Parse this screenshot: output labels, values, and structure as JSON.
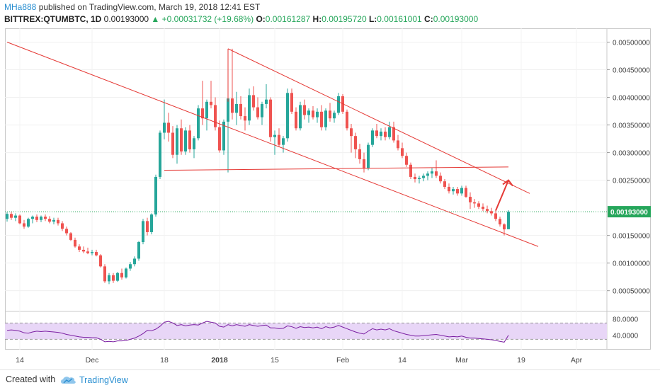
{
  "header": {
    "author": "MHa888",
    "published": "published on TradingView.com, March 19, 2018 12:41 EST",
    "symbol": "BITTREX:QTUMBTC, 1D",
    "last": "0.00193000",
    "change_arrow": "▲",
    "change": "+0.00031732 (+19.68%)",
    "o_label": "O:",
    "o_value": "0.00161287",
    "h_label": "H:",
    "h_value": "0.00195720",
    "l_label": "L:",
    "l_value": "0.00161001",
    "c_label": "C:",
    "c_value": "0.00193000"
  },
  "footer": {
    "created_with": "Created with",
    "brand": "TradingView",
    "brand_icon": "tradingview-cloud-icon"
  },
  "colors": {
    "up": "#26a69a",
    "down": "#ef5350",
    "line": "#e53935",
    "rsi": "#7b1fa2",
    "rsi_band": "#e8d6f7",
    "price_label_bg": "#26a65b"
  },
  "chart_data": [
    {
      "type": "candlestick",
      "title": "BITTREX:QTUMBTC, 1D",
      "x_tick_labels": [
        "14",
        "Dec",
        "18",
        "2018",
        "15",
        "Feb",
        "14",
        "Mar",
        "19",
        "Apr"
      ],
      "y_tick_labels": [
        "0.00500000",
        "0.00450000",
        "0.00400000",
        "0.00350000",
        "0.00300000",
        "0.00250000",
        "0.00150000",
        "0.00100000",
        "0.00050000"
      ],
      "ylim": [
        0.00015,
        0.00525
      ],
      "current_price_label": "0.00193000",
      "candles": [
        [
          0.0018,
          0.00192,
          0.00175,
          0.00189
        ],
        [
          0.00189,
          0.00193,
          0.00178,
          0.00182
        ],
        [
          0.00182,
          0.0019,
          0.00176,
          0.00186
        ],
        [
          0.00186,
          0.00188,
          0.0017,
          0.00172
        ],
        [
          0.00172,
          0.00178,
          0.00162,
          0.00166
        ],
        [
          0.00166,
          0.00182,
          0.00164,
          0.0018
        ],
        [
          0.0018,
          0.00186,
          0.00172,
          0.00184
        ],
        [
          0.00184,
          0.00188,
          0.00174,
          0.00178
        ],
        [
          0.00178,
          0.00186,
          0.00174,
          0.00184
        ],
        [
          0.00184,
          0.00188,
          0.00176,
          0.0018
        ],
        [
          0.0018,
          0.00185,
          0.00172,
          0.00175
        ],
        [
          0.00175,
          0.00182,
          0.0017,
          0.00178
        ],
        [
          0.00178,
          0.00182,
          0.00168,
          0.00172
        ],
        [
          0.00172,
          0.00176,
          0.00158,
          0.00162
        ],
        [
          0.00162,
          0.00166,
          0.0015,
          0.00154
        ],
        [
          0.00154,
          0.00156,
          0.0014,
          0.00142
        ],
        [
          0.00142,
          0.00146,
          0.00128,
          0.0013
        ],
        [
          0.0013,
          0.00134,
          0.0012,
          0.00124
        ],
        [
          0.00124,
          0.0013,
          0.00118,
          0.00121
        ],
        [
          0.00121,
          0.00128,
          0.00116,
          0.00118
        ],
        [
          0.00118,
          0.00124,
          0.00114,
          0.0012
        ],
        [
          0.0012,
          0.00124,
          0.00112,
          0.00114
        ],
        [
          0.00114,
          0.00116,
          0.00092,
          0.00094
        ],
        [
          0.00094,
          0.00098,
          0.00064,
          0.00067
        ],
        [
          0.00067,
          0.00082,
          0.00062,
          0.00078
        ],
        [
          0.00078,
          0.00082,
          0.00064,
          0.00068
        ],
        [
          0.00068,
          0.00084,
          0.00066,
          0.00082
        ],
        [
          0.00082,
          0.0009,
          0.0007,
          0.00074
        ],
        [
          0.00074,
          0.00092,
          0.00072,
          0.0009
        ],
        [
          0.0009,
          0.00102,
          0.00086,
          0.00098
        ],
        [
          0.00098,
          0.00112,
          0.00094,
          0.00108
        ],
        [
          0.00108,
          0.0014,
          0.00104,
          0.00138
        ],
        [
          0.00138,
          0.0018,
          0.00134,
          0.00176
        ],
        [
          0.00176,
          0.00182,
          0.0015,
          0.00156
        ],
        [
          0.00156,
          0.0019,
          0.00152,
          0.00188
        ],
        [
          0.00188,
          0.0026,
          0.00184,
          0.00256
        ],
        [
          0.00256,
          0.0034,
          0.00252,
          0.00336
        ],
        [
          0.00336,
          0.00396,
          0.00324,
          0.00354
        ],
        [
          0.00354,
          0.00372,
          0.0032,
          0.00336
        ],
        [
          0.00336,
          0.00348,
          0.0029,
          0.00296
        ],
        [
          0.00296,
          0.0035,
          0.0028,
          0.00344
        ],
        [
          0.00344,
          0.0036,
          0.00296,
          0.00302
        ],
        [
          0.00302,
          0.00346,
          0.00296,
          0.0034
        ],
        [
          0.0034,
          0.0035,
          0.003,
          0.00306
        ],
        [
          0.00306,
          0.0033,
          0.0029,
          0.00326
        ],
        [
          0.00326,
          0.00386,
          0.00322,
          0.0038
        ],
        [
          0.0038,
          0.0043,
          0.0035,
          0.00362
        ],
        [
          0.00362,
          0.00396,
          0.0034,
          0.00392
        ],
        [
          0.00392,
          0.0043,
          0.0038,
          0.00386
        ],
        [
          0.00386,
          0.004,
          0.0034,
          0.00346
        ],
        [
          0.00346,
          0.00358,
          0.003,
          0.00304
        ],
        [
          0.00304,
          0.0036,
          0.00296,
          0.00356
        ],
        [
          0.00356,
          0.0042,
          0.00264,
          0.00398
        ],
        [
          0.00398,
          0.00488,
          0.0036,
          0.00372
        ],
        [
          0.00372,
          0.0041,
          0.0035,
          0.00388
        ],
        [
          0.00388,
          0.00402,
          0.0036,
          0.00366
        ],
        [
          0.00366,
          0.00382,
          0.0034,
          0.00358
        ],
        [
          0.00358,
          0.00416,
          0.0035,
          0.00404
        ],
        [
          0.00404,
          0.0042,
          0.00376,
          0.00382
        ],
        [
          0.00382,
          0.004,
          0.0036,
          0.00364
        ],
        [
          0.00364,
          0.00392,
          0.0035,
          0.00388
        ],
        [
          0.00388,
          0.00424,
          0.0038,
          0.00396
        ],
        [
          0.00396,
          0.004,
          0.0032,
          0.00328
        ],
        [
          0.00328,
          0.0034,
          0.00296,
          0.00332
        ],
        [
          0.00332,
          0.00344,
          0.0031,
          0.00314
        ],
        [
          0.00314,
          0.0033,
          0.003,
          0.00326
        ],
        [
          0.00326,
          0.00416,
          0.0032,
          0.00408
        ],
        [
          0.00408,
          0.00416,
          0.0037,
          0.00374
        ],
        [
          0.00374,
          0.00382,
          0.0034,
          0.00344
        ],
        [
          0.00344,
          0.00392,
          0.0034,
          0.00386
        ],
        [
          0.00386,
          0.00396,
          0.0036,
          0.00368
        ],
        [
          0.00368,
          0.0038,
          0.00354,
          0.00376
        ],
        [
          0.00376,
          0.00384,
          0.0036,
          0.00364
        ],
        [
          0.00364,
          0.0038,
          0.00354,
          0.00374
        ],
        [
          0.00374,
          0.00386,
          0.0034,
          0.00346
        ],
        [
          0.00346,
          0.0038,
          0.0034,
          0.00376
        ],
        [
          0.00376,
          0.0039,
          0.00356,
          0.00362
        ],
        [
          0.00362,
          0.00376,
          0.00354,
          0.00372
        ],
        [
          0.00372,
          0.00408,
          0.00368,
          0.00402
        ],
        [
          0.00402,
          0.00406,
          0.0037,
          0.00374
        ],
        [
          0.00374,
          0.00378,
          0.0034,
          0.00344
        ],
        [
          0.00344,
          0.00352,
          0.003,
          0.0033
        ],
        [
          0.0033,
          0.00336,
          0.0029,
          0.00306
        ],
        [
          0.00306,
          0.00316,
          0.0028,
          0.00288
        ],
        [
          0.00288,
          0.003,
          0.00264,
          0.00272
        ],
        [
          0.00272,
          0.00318,
          0.00268,
          0.00314
        ],
        [
          0.00314,
          0.00344,
          0.0031,
          0.0034
        ],
        [
          0.0034,
          0.00352,
          0.00326,
          0.0033
        ],
        [
          0.0033,
          0.00344,
          0.00322,
          0.00338
        ],
        [
          0.00338,
          0.00346,
          0.00322,
          0.00328
        ],
        [
          0.00328,
          0.00356,
          0.00324,
          0.00346
        ],
        [
          0.00346,
          0.00356,
          0.00318,
          0.00322
        ],
        [
          0.00322,
          0.00332,
          0.00304,
          0.00308
        ],
        [
          0.00308,
          0.00318,
          0.0029,
          0.00294
        ],
        [
          0.00294,
          0.003,
          0.00274,
          0.00278
        ],
        [
          0.00278,
          0.00282,
          0.00252,
          0.00256
        ],
        [
          0.00256,
          0.00262,
          0.00246,
          0.00252
        ],
        [
          0.00252,
          0.00258,
          0.00244,
          0.00254
        ],
        [
          0.00254,
          0.00262,
          0.00248,
          0.00258
        ],
        [
          0.00258,
          0.00266,
          0.0025,
          0.00262
        ],
        [
          0.00262,
          0.00272,
          0.00254,
          0.00266
        ],
        [
          0.00266,
          0.00286,
          0.00254,
          0.00258
        ],
        [
          0.00258,
          0.00264,
          0.00244,
          0.00248
        ],
        [
          0.00248,
          0.00252,
          0.00234,
          0.00238
        ],
        [
          0.00238,
          0.00244,
          0.00226,
          0.0023
        ],
        [
          0.0023,
          0.00238,
          0.00224,
          0.00234
        ],
        [
          0.00234,
          0.00238,
          0.00222,
          0.00226
        ],
        [
          0.00226,
          0.0024,
          0.00222,
          0.00236
        ],
        [
          0.00236,
          0.0024,
          0.00218,
          0.0022
        ],
        [
          0.0022,
          0.00228,
          0.00198,
          0.0021
        ],
        [
          0.0021,
          0.00216,
          0.002,
          0.00208
        ],
        [
          0.00208,
          0.00212,
          0.00198,
          0.00202
        ],
        [
          0.00202,
          0.00208,
          0.00194,
          0.00198
        ],
        [
          0.00198,
          0.00204,
          0.0019,
          0.00194
        ],
        [
          0.00194,
          0.002,
          0.00186,
          0.0019
        ],
        [
          0.0019,
          0.00196,
          0.00176,
          0.0018
        ],
        [
          0.0018,
          0.00184,
          0.00166,
          0.0017
        ],
        [
          0.0017,
          0.00172,
          0.0015,
          0.00161
        ],
        [
          0.00161287,
          0.0019572,
          0.00161001,
          0.00193
        ]
      ],
      "trendlines": [
        {
          "name": "outer-resistance",
          "from": [
            0,
            0.005
          ],
          "to": [
            125,
            0.0013
          ]
        },
        {
          "name": "upper-channel",
          "from": [
            52,
            0.00488
          ],
          "to": [
            123,
            0.00226
          ]
        },
        {
          "name": "channel-drop",
          "from": [
            52,
            0.00488
          ],
          "to": [
            52,
            0.00392
          ]
        },
        {
          "name": "horizontal-support",
          "from": [
            37,
            0.00268
          ],
          "to": [
            118,
            0.00274
          ]
        }
      ],
      "arrow": {
        "from": [
          115,
          0.00195
        ],
        "to": [
          118,
          0.0025
        ]
      }
    },
    {
      "type": "line",
      "y_tick_labels": [
        "80.0000",
        "40.0000"
      ],
      "ylim": [
        15,
        95
      ],
      "band": [
        30,
        70
      ],
      "values": [
        52,
        53,
        52,
        50,
        46,
        45,
        48,
        50,
        49,
        50,
        49,
        48,
        47,
        45,
        42,
        40,
        38,
        36,
        35,
        35,
        34,
        34,
        30,
        24,
        25,
        24,
        26,
        26,
        27,
        30,
        33,
        38,
        44,
        52,
        51,
        55,
        62,
        72,
        74,
        70,
        64,
        66,
        63,
        65,
        66,
        65,
        70,
        74,
        72,
        70,
        62,
        60,
        66,
        63,
        66,
        64,
        62,
        66,
        64,
        62,
        64,
        65,
        58,
        58,
        56,
        57,
        63,
        61,
        57,
        61,
        59,
        60,
        58,
        60,
        56,
        61,
        58,
        60,
        64,
        60,
        56,
        52,
        48,
        45,
        43,
        50,
        56,
        53,
        55,
        53,
        56,
        51,
        48,
        45,
        42,
        40,
        38,
        38,
        39,
        40,
        41,
        42,
        40,
        38,
        36,
        37,
        36,
        38,
        35,
        33,
        33,
        32,
        31,
        30,
        29,
        27,
        25,
        23,
        40
      ]
    }
  ]
}
